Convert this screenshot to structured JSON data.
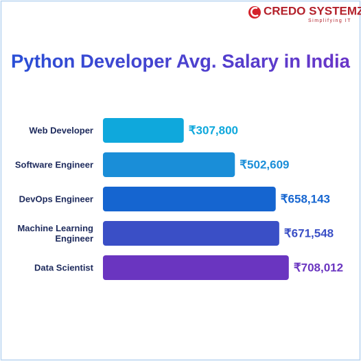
{
  "logo": {
    "name": "CREDO SYSTEMZ",
    "tagline": "Simplifying IT"
  },
  "chart_data": {
    "type": "bar",
    "orientation": "horizontal",
    "title": "Python Developer Avg. Salary in India",
    "categories": [
      "Web Developer",
      "Software Engineer",
      "DevOps Engineer",
      "Machine Learning Engineer",
      "Data Scientist"
    ],
    "values": [
      307800,
      502609,
      658143,
      671548,
      708012
    ],
    "value_labels": [
      "₹307,800",
      "₹502,609",
      "₹658,143",
      "₹671,548",
      "₹708,012"
    ],
    "colors": [
      "#0fa8dc",
      "#1a8ed8",
      "#1565d0",
      "#3a4fc6",
      "#6a35c0"
    ],
    "xlim": [
      0,
      800000
    ]
  }
}
